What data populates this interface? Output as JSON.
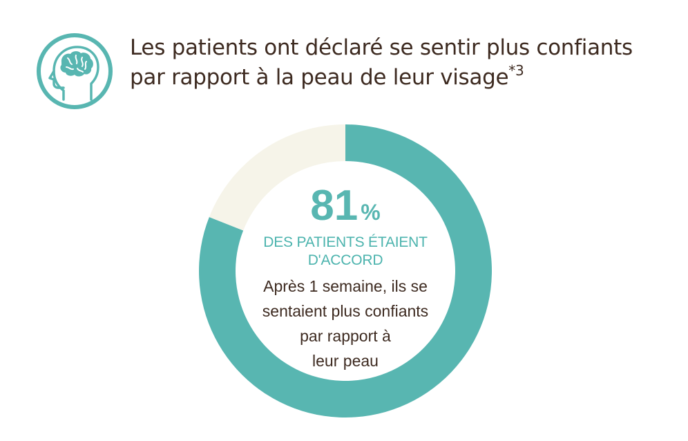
{
  "title": {
    "line1": "Les patients ont déclaré se sentir plus confiants",
    "line2": "par rapport à la peau de leur visage",
    "footnote": "*3"
  },
  "icon": {
    "name": "head-brain-icon",
    "color": "#58b6b1"
  },
  "chart_data": {
    "type": "pie",
    "donut": true,
    "values": [
      81,
      19
    ],
    "colors": [
      "#58b6b1",
      "#f6f4e9"
    ],
    "value_label": "81",
    "unit_label": "%",
    "center_caption": [
      "DES PATIENTS ÉTAIENT",
      "D'ACCORD"
    ],
    "description": [
      "Après 1 semaine, ils se",
      "sentaient plus confiants",
      "par rapport à",
      "leur peau"
    ]
  }
}
